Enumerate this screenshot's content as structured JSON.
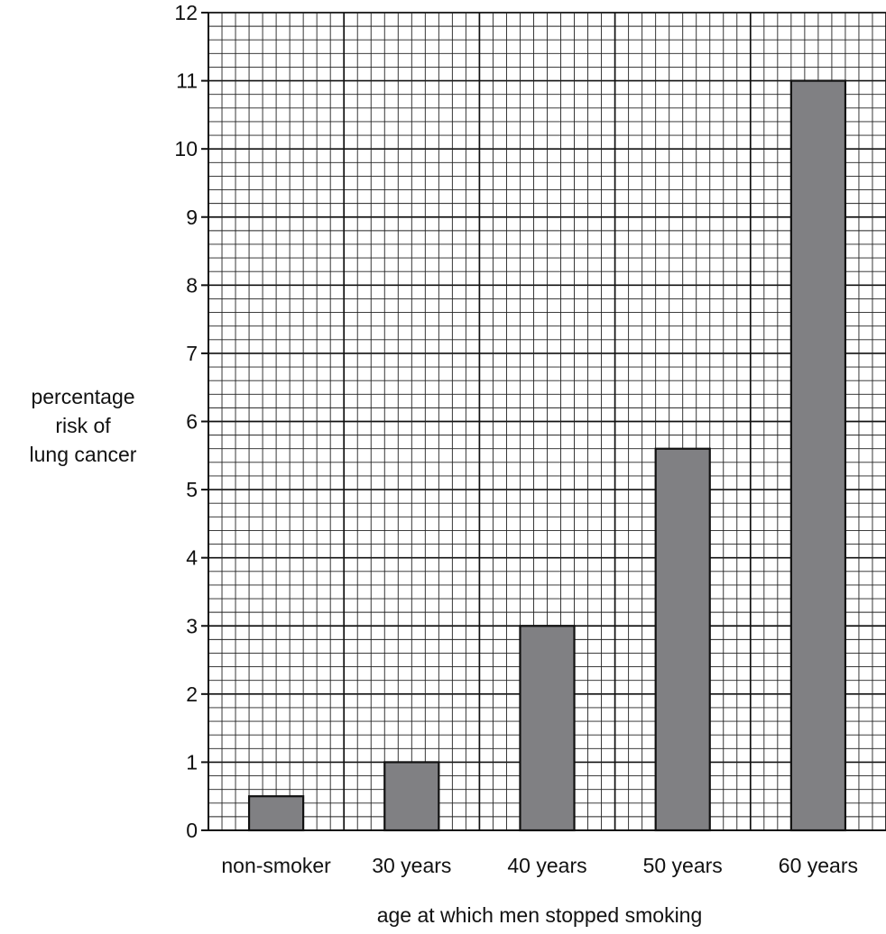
{
  "chart_data": {
    "type": "bar",
    "categories": [
      "non-smoker",
      "30 years",
      "40 years",
      "50 years",
      "60 years"
    ],
    "values": [
      0.5,
      1,
      3,
      5.6,
      11
    ],
    "title": "",
    "xlabel": "age at which men stopped smoking",
    "ylabel_lines": [
      "percentage",
      "risk of",
      "lung cancer"
    ],
    "ylim": [
      0,
      12
    ],
    "yticks": [
      0,
      1,
      2,
      3,
      4,
      5,
      6,
      7,
      8,
      9,
      10,
      11,
      12
    ],
    "grid": true,
    "bar_color": "#808083",
    "edge_color": "#111111"
  }
}
